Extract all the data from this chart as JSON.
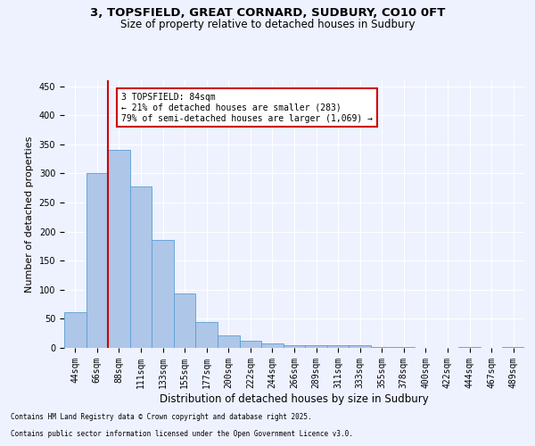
{
  "title_line1": "3, TOPSFIELD, GREAT CORNARD, SUDBURY, CO10 0FT",
  "title_line2": "Size of property relative to detached houses in Sudbury",
  "xlabel": "Distribution of detached houses by size in Sudbury",
  "ylabel": "Number of detached properties",
  "footer_line1": "Contains HM Land Registry data © Crown copyright and database right 2025.",
  "footer_line2": "Contains public sector information licensed under the Open Government Licence v3.0.",
  "annotation_line1": "3 TOPSFIELD: 84sqm",
  "annotation_line2": "← 21% of detached houses are smaller (283)",
  "annotation_line3": "79% of semi-detached houses are larger (1,069) →",
  "bar_labels": [
    "44sqm",
    "66sqm",
    "88sqm",
    "111sqm",
    "133sqm",
    "155sqm",
    "177sqm",
    "200sqm",
    "222sqm",
    "244sqm",
    "266sqm",
    "289sqm",
    "311sqm",
    "333sqm",
    "355sqm",
    "378sqm",
    "400sqm",
    "422sqm",
    "444sqm",
    "467sqm",
    "489sqm"
  ],
  "bar_values": [
    62,
    301,
    340,
    278,
    185,
    94,
    44,
    22,
    12,
    7,
    5,
    5,
    4,
    4,
    2,
    2,
    0,
    0,
    2,
    0,
    2
  ],
  "bar_color": "#aec6e8",
  "bar_edge_color": "#5a9fd4",
  "ylim": [
    0,
    460
  ],
  "yticks": [
    0,
    50,
    100,
    150,
    200,
    250,
    300,
    350,
    400,
    450
  ],
  "background_color": "#eef2ff",
  "grid_color": "#ffffff",
  "annotation_box_color": "#ffffff",
  "annotation_box_edge": "#cc0000",
  "red_line_color": "#cc0000",
  "title_fontsize": 9.5,
  "subtitle_fontsize": 8.5,
  "ylabel_fontsize": 8,
  "xlabel_fontsize": 8.5,
  "tick_fontsize": 7,
  "footer_fontsize": 5.5,
  "annot_fontsize": 7
}
